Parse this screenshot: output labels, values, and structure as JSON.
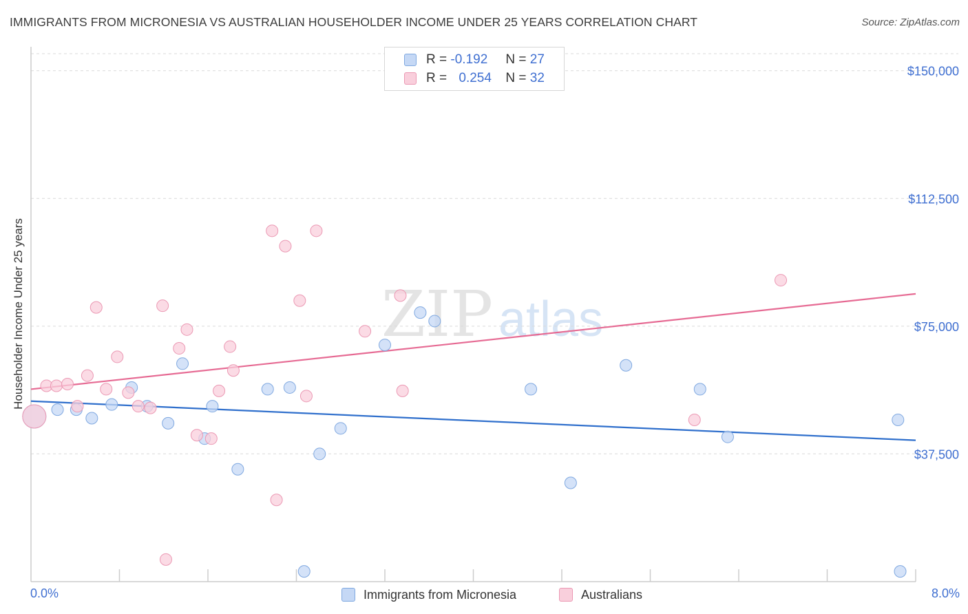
{
  "title": "IMMIGRANTS FROM MICRONESIA VS AUSTRALIAN HOUSEHOLDER INCOME UNDER 25 YEARS CORRELATION CHART",
  "source": "Source: ZipAtlas.com",
  "watermark": {
    "zip": "ZIP",
    "atlas": "atlas"
  },
  "colors": {
    "blue_fill": "#c5d8f5",
    "blue_stroke": "#7fa8e0",
    "blue_line": "#2f6fcc",
    "pink_fill": "#f9cfdc",
    "pink_stroke": "#eb98b3",
    "pink_line": "#e66a93",
    "axis_label": "#3f6fd1",
    "grid": "#d9d9d9"
  },
  "legend": [
    {
      "r_label": "R =",
      "r_value": "-0.192",
      "n_label": "N =",
      "n_value": "27",
      "series": "blue"
    },
    {
      "r_label": "R =",
      "r_value": "0.254",
      "n_label": "N =",
      "n_value": "32",
      "series": "pink"
    }
  ],
  "bottom_legend": [
    "Immigrants from Micronesia",
    "Australians"
  ],
  "chart_data": {
    "type": "scatter",
    "title": "IMMIGRANTS FROM MICRONESIA VS AUSTRALIAN HOUSEHOLDER INCOME UNDER 25 YEARS CORRELATION CHART",
    "xlabel": "",
    "ylabel": "Householder Income Under 25 years",
    "xlim": [
      0,
      8
    ],
    "ylim": [
      0,
      155000
    ],
    "x_tick_labels": [
      "0.0%",
      "8.0%"
    ],
    "y_ticks": [
      37500,
      75000,
      112500,
      150000
    ],
    "y_tick_labels": [
      "$37,500",
      "$75,000",
      "$112,500",
      "$150,000"
    ],
    "grid": true,
    "series": [
      {
        "name": "Immigrants from Micronesia",
        "color": "blue",
        "r": -0.192,
        "n": 27,
        "trend": {
          "x": [
            0,
            8
          ],
          "y": [
            53000,
            41500
          ]
        },
        "points": [
          {
            "x": 0.03,
            "y": 48500,
            "large": true
          },
          {
            "x": 0.24,
            "y": 50500
          },
          {
            "x": 0.41,
            "y": 50500
          },
          {
            "x": 0.55,
            "y": 48000
          },
          {
            "x": 0.73,
            "y": 52000
          },
          {
            "x": 0.91,
            "y": 57000
          },
          {
            "x": 1.05,
            "y": 51500
          },
          {
            "x": 1.24,
            "y": 46500
          },
          {
            "x": 1.37,
            "y": 64000
          },
          {
            "x": 1.57,
            "y": 42000
          },
          {
            "x": 1.64,
            "y": 51500
          },
          {
            "x": 1.87,
            "y": 33000
          },
          {
            "x": 2.14,
            "y": 56500
          },
          {
            "x": 2.34,
            "y": 57000
          },
          {
            "x": 2.47,
            "y": 3000
          },
          {
            "x": 2.61,
            "y": 37500
          },
          {
            "x": 2.8,
            "y": 45000
          },
          {
            "x": 3.2,
            "y": 69500
          },
          {
            "x": 3.52,
            "y": 79000
          },
          {
            "x": 3.65,
            "y": 76500
          },
          {
            "x": 4.52,
            "y": 56500
          },
          {
            "x": 4.88,
            "y": 29000
          },
          {
            "x": 5.38,
            "y": 63500
          },
          {
            "x": 6.05,
            "y": 56500
          },
          {
            "x": 6.3,
            "y": 42500
          },
          {
            "x": 7.84,
            "y": 47500
          },
          {
            "x": 7.86,
            "y": 3000
          }
        ]
      },
      {
        "name": "Australians",
        "color": "pink",
        "r": 0.254,
        "n": 32,
        "trend": {
          "x": [
            0,
            8
          ],
          "y": [
            56500,
            84500
          ]
        },
        "points": [
          {
            "x": 0.03,
            "y": 48500,
            "large": true
          },
          {
            "x": 0.14,
            "y": 57500
          },
          {
            "x": 0.23,
            "y": 57500
          },
          {
            "x": 0.33,
            "y": 58000
          },
          {
            "x": 0.42,
            "y": 51500
          },
          {
            "x": 0.51,
            "y": 60500
          },
          {
            "x": 0.59,
            "y": 80500
          },
          {
            "x": 0.68,
            "y": 56500
          },
          {
            "x": 0.78,
            "y": 66000
          },
          {
            "x": 0.88,
            "y": 55500
          },
          {
            "x": 0.97,
            "y": 51500
          },
          {
            "x": 1.08,
            "y": 51000
          },
          {
            "x": 1.19,
            "y": 81000
          },
          {
            "x": 1.34,
            "y": 68500
          },
          {
            "x": 1.41,
            "y": 74000
          },
          {
            "x": 1.5,
            "y": 43000
          },
          {
            "x": 1.63,
            "y": 42000
          },
          {
            "x": 1.7,
            "y": 56000
          },
          {
            "x": 1.8,
            "y": 69000
          },
          {
            "x": 1.83,
            "y": 62000
          },
          {
            "x": 1.22,
            "y": 6500
          },
          {
            "x": 2.18,
            "y": 103000
          },
          {
            "x": 2.22,
            "y": 24000
          },
          {
            "x": 2.3,
            "y": 98500
          },
          {
            "x": 2.43,
            "y": 82500
          },
          {
            "x": 2.49,
            "y": 54500
          },
          {
            "x": 2.58,
            "y": 103000
          },
          {
            "x": 3.02,
            "y": 73500
          },
          {
            "x": 3.34,
            "y": 84000
          },
          {
            "x": 3.36,
            "y": 56000
          },
          {
            "x": 6.0,
            "y": 47500
          },
          {
            "x": 6.78,
            "y": 88500
          }
        ]
      }
    ]
  }
}
